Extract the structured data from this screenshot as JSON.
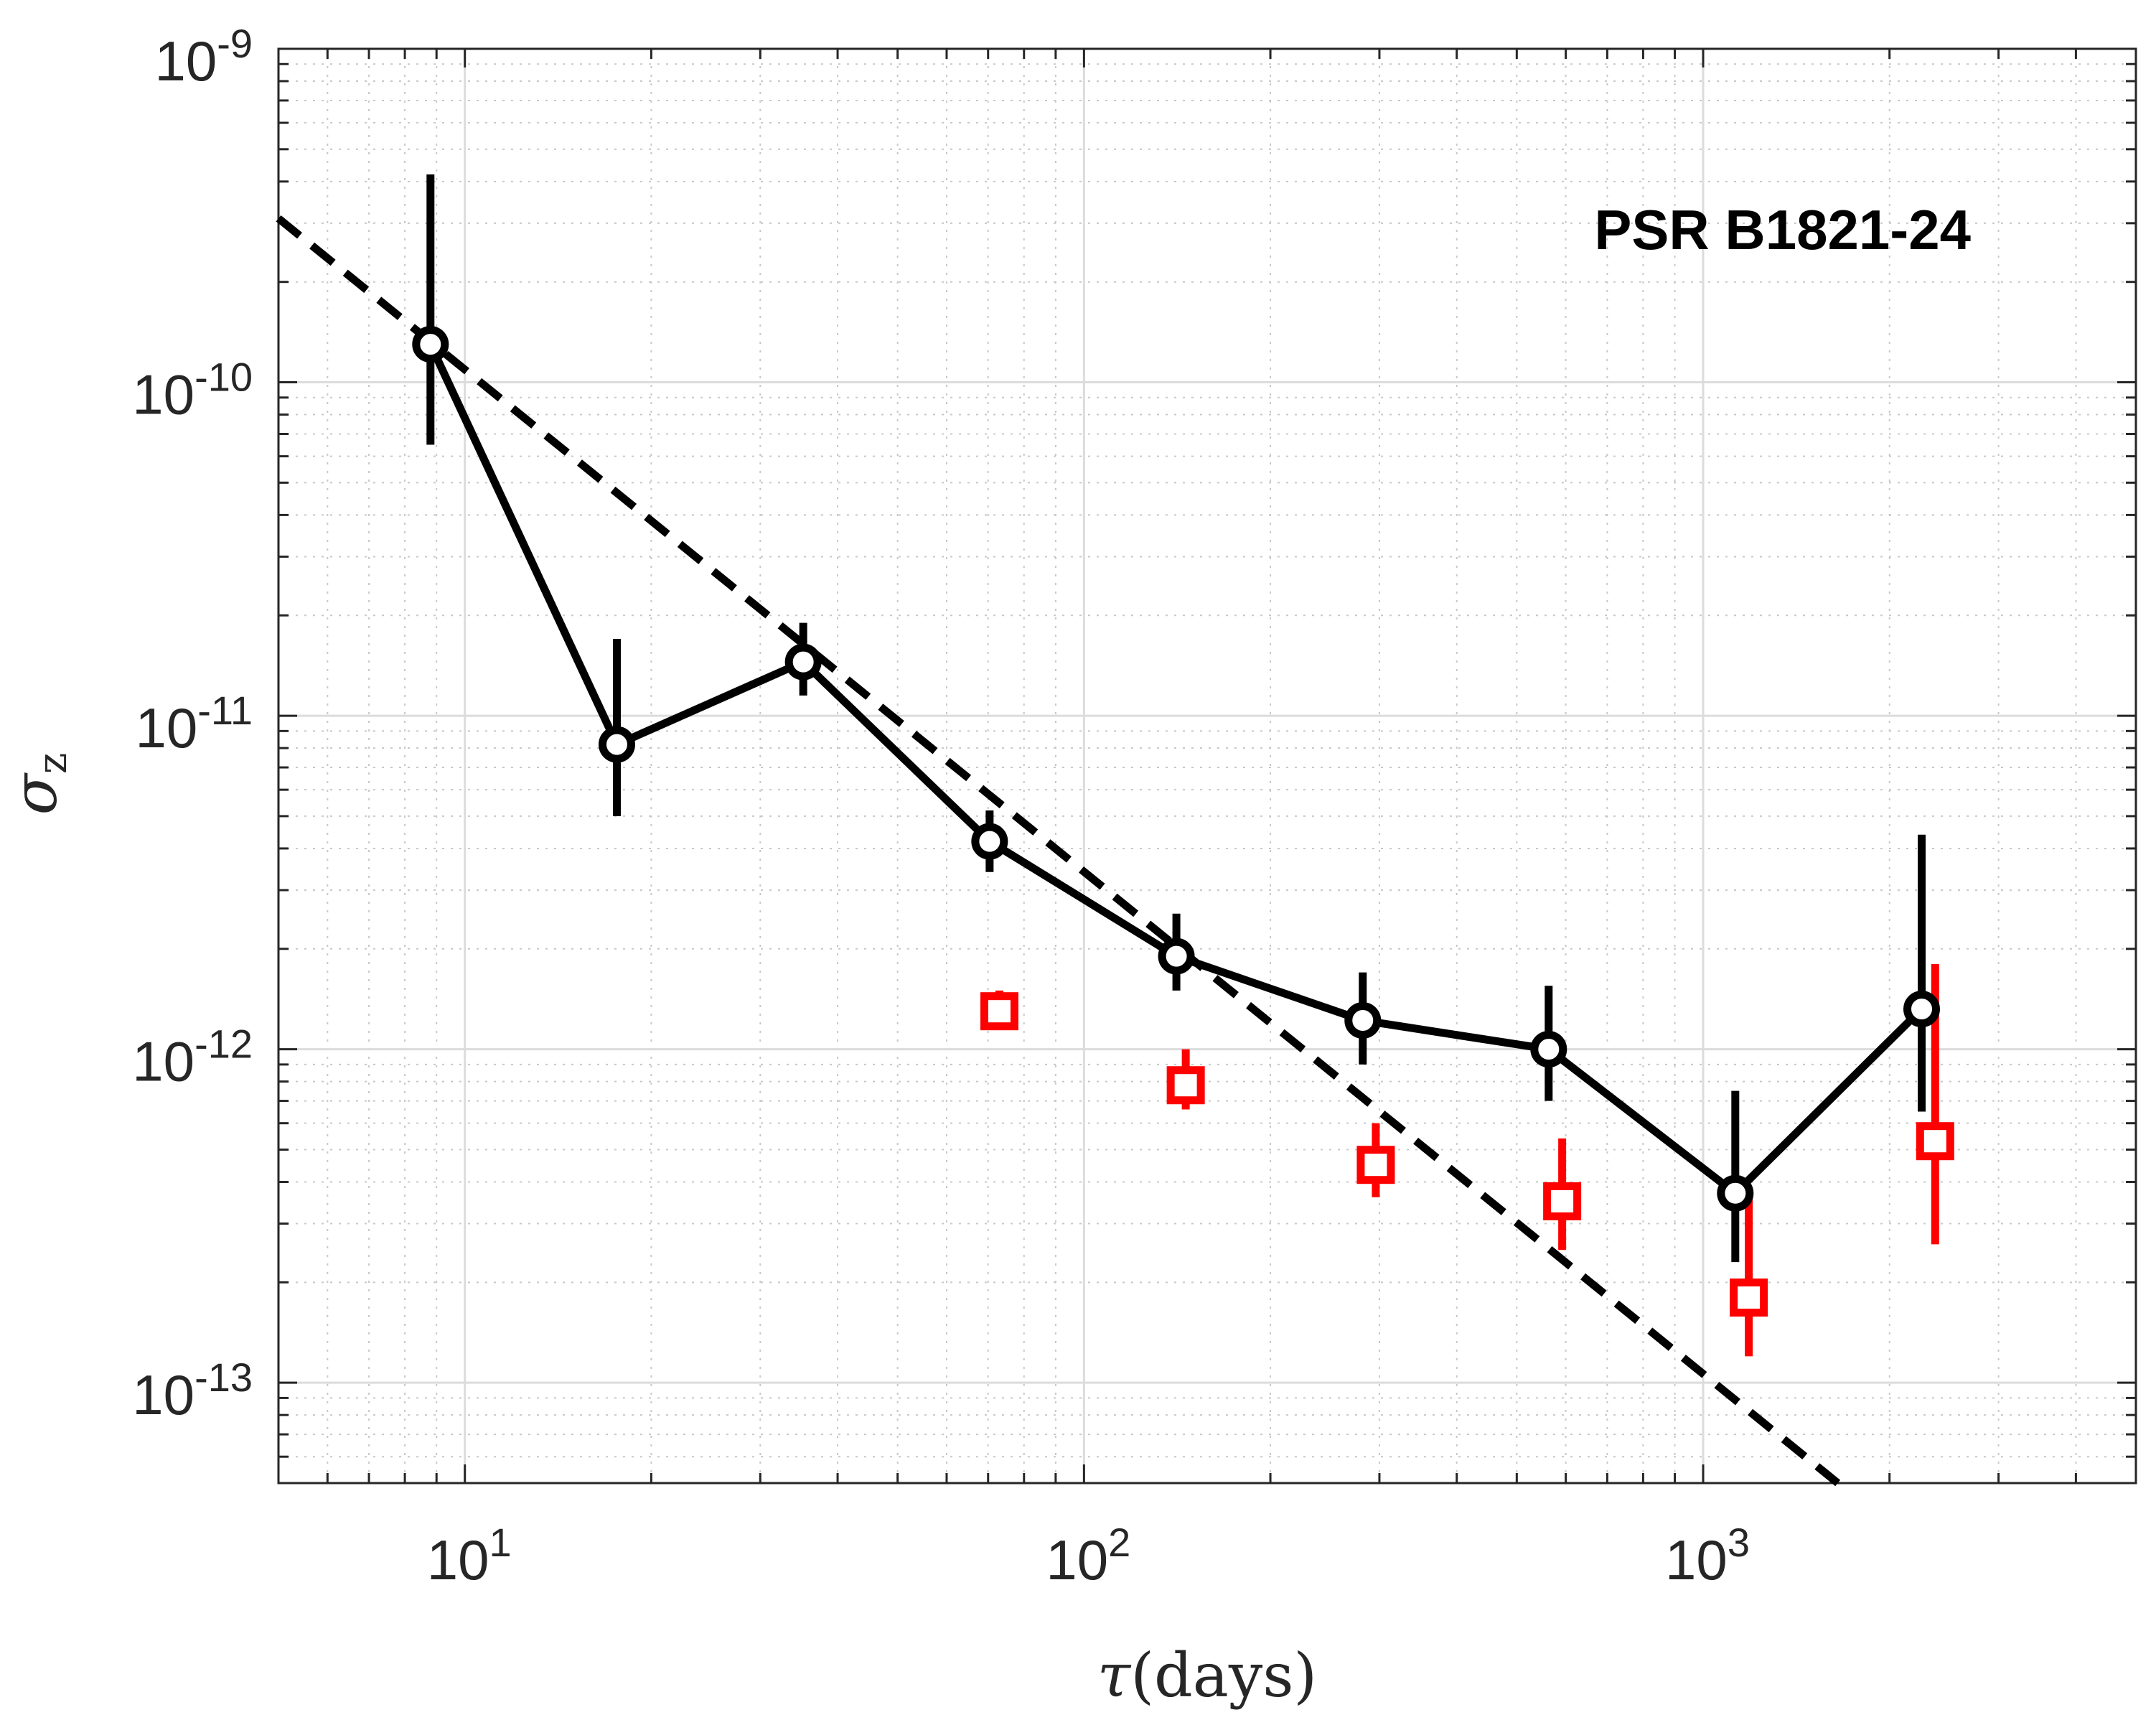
{
  "chart_data": {
    "type": "line",
    "title": "",
    "annotation": "PSR B1821-24",
    "xlabel": {
      "symbol": "τ",
      "text": "(days)"
    },
    "ylabel": {
      "symbol": "σ",
      "subscript": "z"
    },
    "xscale": "log",
    "yscale": "log",
    "xlim": [
      5,
      5000
    ],
    "ylim": [
      5e-14,
      1e-09
    ],
    "grid": true,
    "legend": "none",
    "x_ticks": [
      {
        "value": 10,
        "base": "10",
        "exp": "1"
      },
      {
        "value": 100,
        "base": "10",
        "exp": "2"
      },
      {
        "value": 1000,
        "base": "10",
        "exp": "3"
      }
    ],
    "y_ticks": [
      {
        "value": 1e-13,
        "base": "10",
        "exp": "-13"
      },
      {
        "value": 1e-12,
        "base": "10",
        "exp": "-12"
      },
      {
        "value": 1e-11,
        "base": "10",
        "exp": "-11"
      },
      {
        "value": 1e-10,
        "base": "10",
        "exp": "-10"
      },
      {
        "value": 1e-09,
        "base": "10",
        "exp": "-9"
      }
    ],
    "series": [
      {
        "name": "sigma_z (black circles)",
        "color": "#000000",
        "marker": "circle",
        "line": "solid",
        "x": [
          8.8,
          17.6,
          35.2,
          70.4,
          141,
          282,
          563,
          1127,
          2254
        ],
        "y": [
          1.3e-10,
          8.2e-12,
          1.45e-11,
          4.2e-12,
          1.9e-12,
          1.22e-12,
          1e-12,
          3.7e-13,
          1.32e-12
        ],
        "err_low": [
          6.5e-11,
          5e-12,
          1.15e-11,
          3.4e-12,
          1.5e-12,
          9e-13,
          7e-13,
          2.3e-13,
          6.5e-13
        ],
        "err_high": [
          4.2e-10,
          1.7e-11,
          1.9e-11,
          5.2e-12,
          2.55e-12,
          1.7e-12,
          1.55e-12,
          7.5e-13,
          4.4e-12
        ]
      },
      {
        "name": "sigma_z (red squares)",
        "color": "#ff0000",
        "marker": "square",
        "line": "none",
        "x": [
          73,
          146,
          296,
          592,
          1185,
          2370
        ],
        "y": [
          1.3e-12,
          7.8e-13,
          4.5e-13,
          3.5e-13,
          1.8e-13,
          5.3e-13
        ],
        "err_low": [
          1.2e-12,
          6.6e-13,
          3.6e-13,
          2.5e-13,
          1.2e-13,
          2.6e-13
        ],
        "err_high": [
          1.5e-12,
          1e-12,
          6e-13,
          5.4e-13,
          3.6e-13,
          1.8e-12
        ]
      },
      {
        "name": "power-law fit",
        "color": "#000000",
        "marker": "none",
        "line": "dashed",
        "x": [
          5,
          1650
        ],
        "y": [
          3.1e-10,
          5e-14
        ]
      }
    ]
  }
}
